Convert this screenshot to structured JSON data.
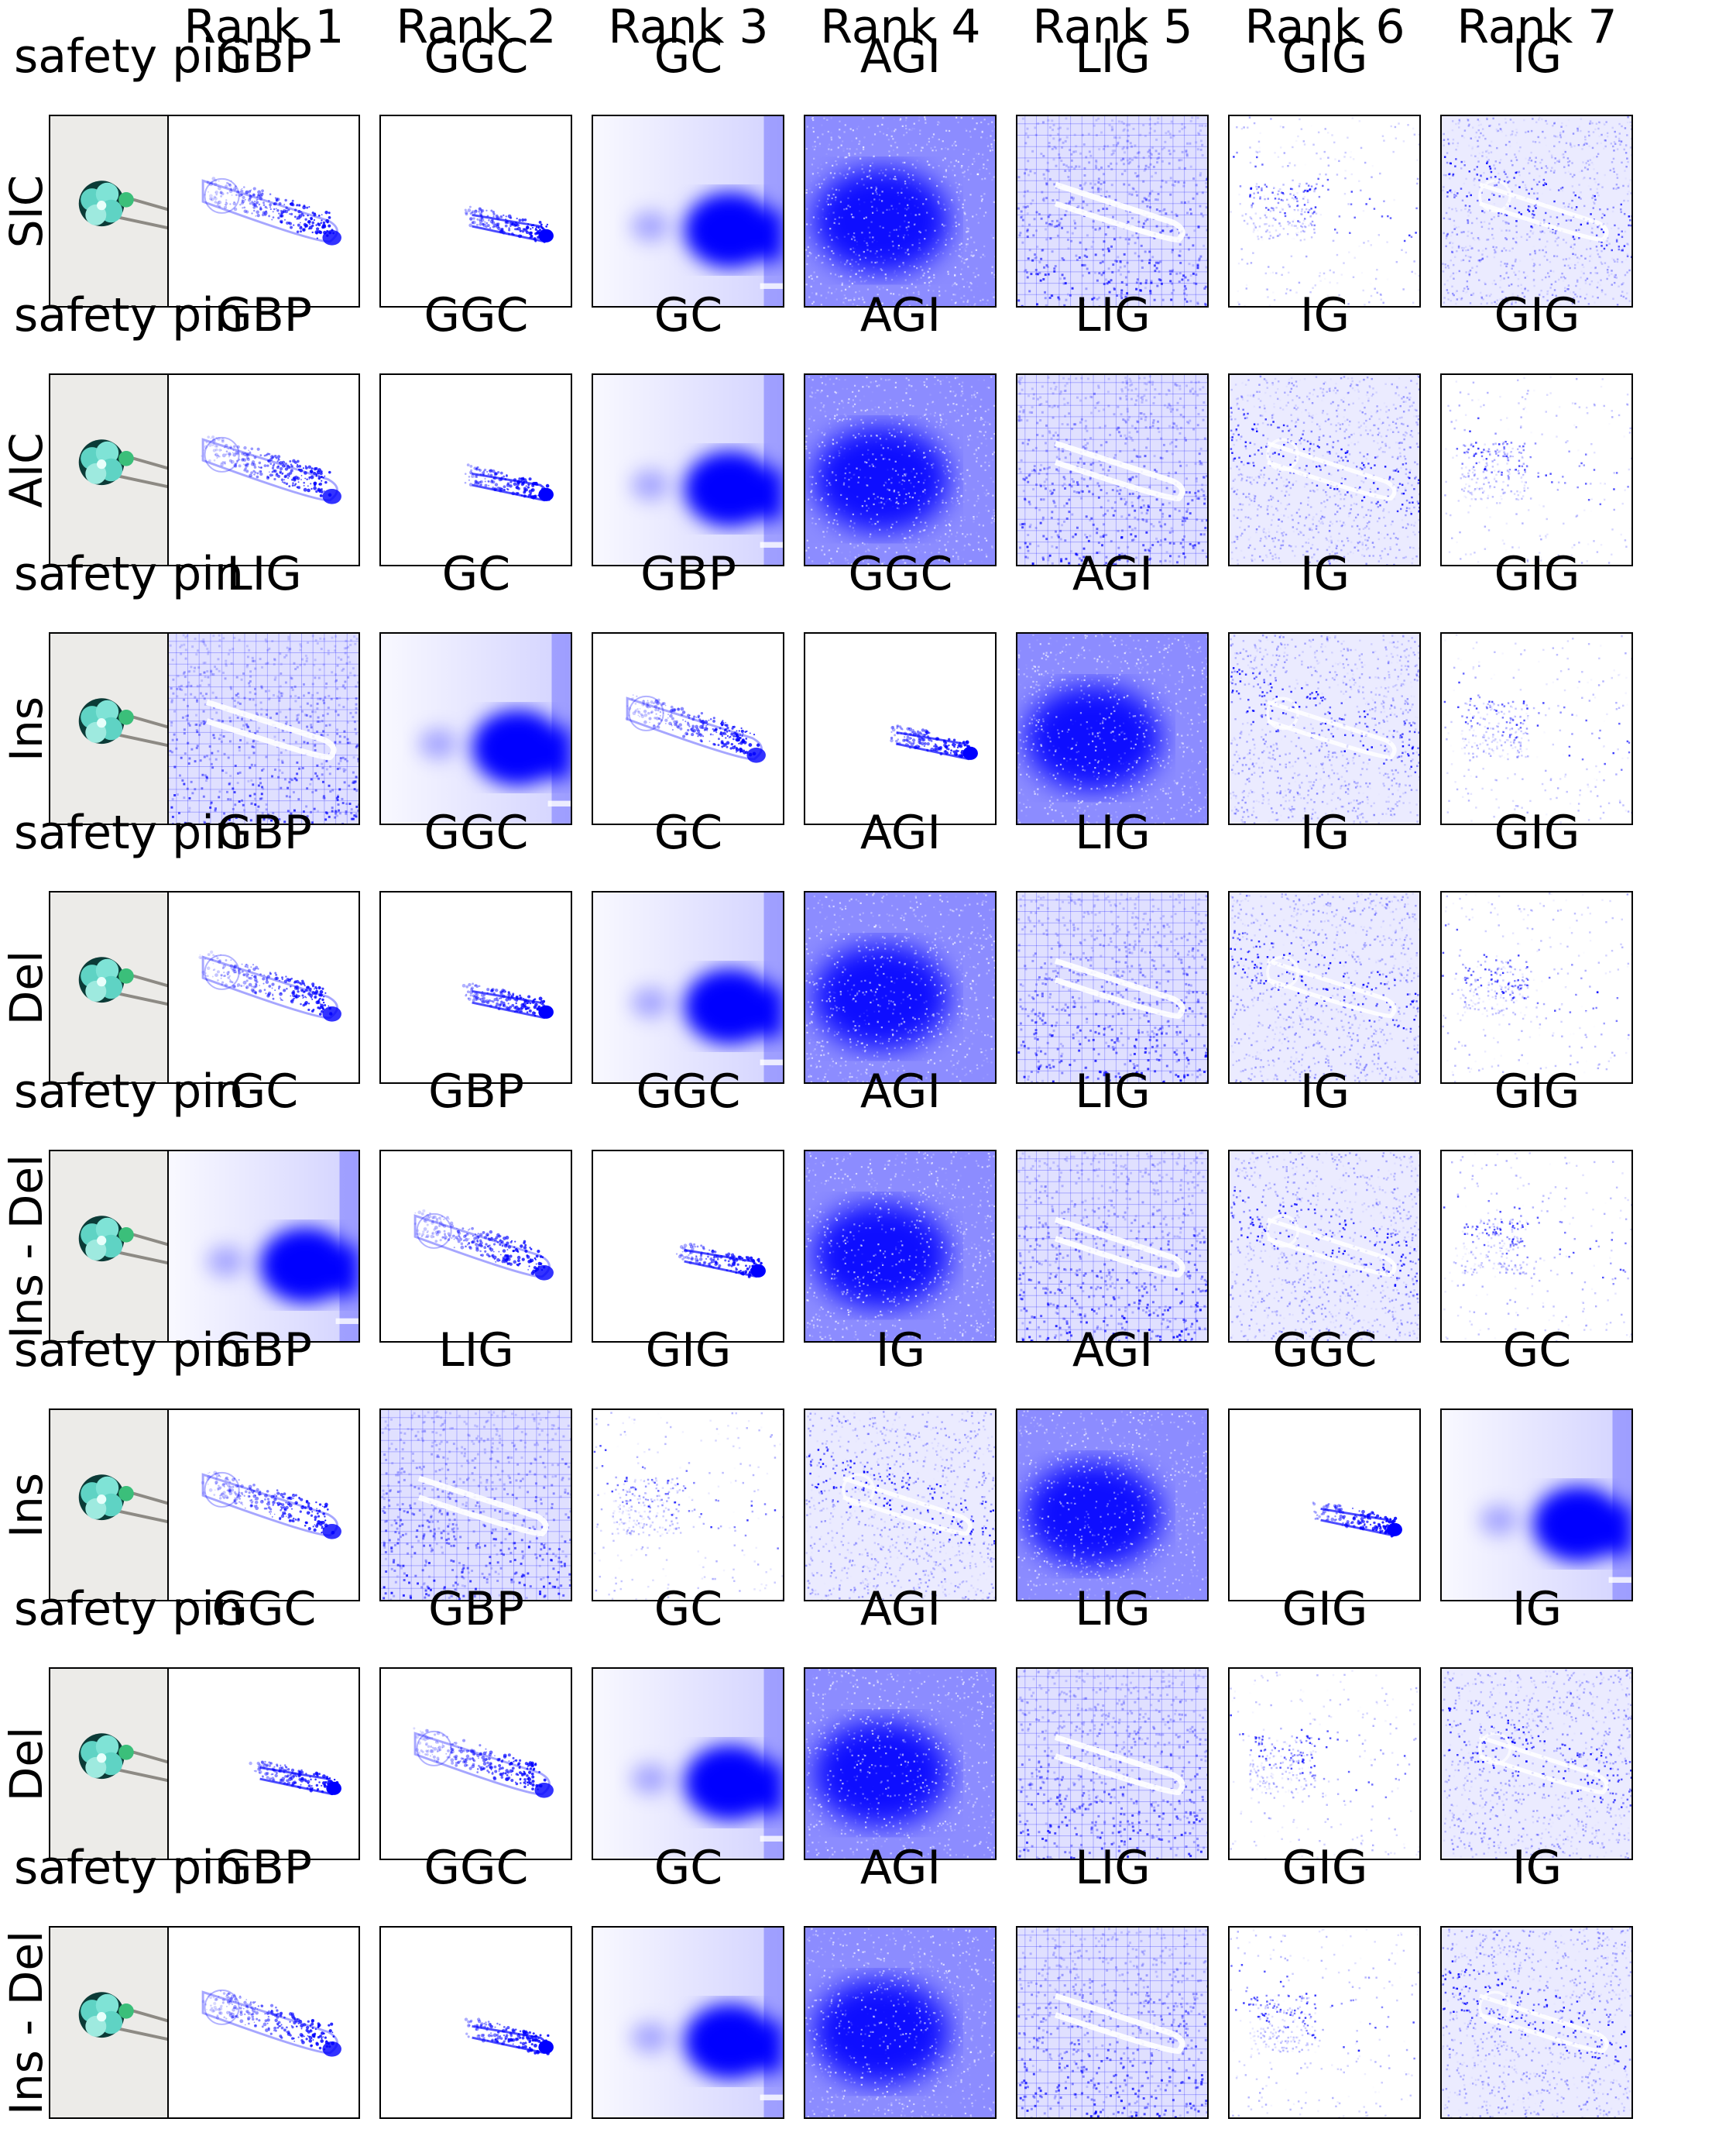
{
  "column_headers": [
    "Rank 1",
    "Rank 2",
    "Rank 3",
    "Rank 4",
    "Rank 5",
    "Rank 6",
    "Rank 7"
  ],
  "rows": [
    {
      "label": "SIC",
      "class_label": "safety pin",
      "methods": [
        "GBP",
        "GGC",
        "GC",
        "AGI",
        "LIG",
        "GIG",
        "IG"
      ]
    },
    {
      "label": "AIC",
      "class_label": "safety pin",
      "methods": [
        "GBP",
        "GGC",
        "GC",
        "AGI",
        "LIG",
        "IG",
        "GIG"
      ]
    },
    {
      "label": "Ins",
      "class_label": "safety pin",
      "methods": [
        "LIG",
        "GC",
        "GBP",
        "GGC",
        "AGI",
        "IG",
        "GIG"
      ]
    },
    {
      "label": "Del",
      "class_label": "safety pin",
      "methods": [
        "GBP",
        "GGC",
        "GC",
        "AGI",
        "LIG",
        "IG",
        "GIG"
      ]
    },
    {
      "label": "Ins - Del",
      "class_label": "safety pin",
      "methods": [
        "GC",
        "GBP",
        "GGC",
        "AGI",
        "LIG",
        "IG",
        "GIG"
      ]
    },
    {
      "label": "Ins",
      "class_label": "safety pin",
      "methods": [
        "GBP",
        "LIG",
        "GIG",
        "IG",
        "AGI",
        "GGC",
        "GC"
      ]
    },
    {
      "label": "Del",
      "class_label": "safety pin",
      "methods": [
        "GGC",
        "GBP",
        "GC",
        "AGI",
        "LIG",
        "GIG",
        "IG"
      ]
    },
    {
      "label": "Ins - Del",
      "class_label": "safety pin",
      "methods": [
        "GBP",
        "GGC",
        "GC",
        "AGI",
        "LIG",
        "GIG",
        "IG"
      ]
    }
  ],
  "colors": {
    "saliency": "#0000ff",
    "flower": "#5fd3c4",
    "pin": "#8d8a84"
  }
}
